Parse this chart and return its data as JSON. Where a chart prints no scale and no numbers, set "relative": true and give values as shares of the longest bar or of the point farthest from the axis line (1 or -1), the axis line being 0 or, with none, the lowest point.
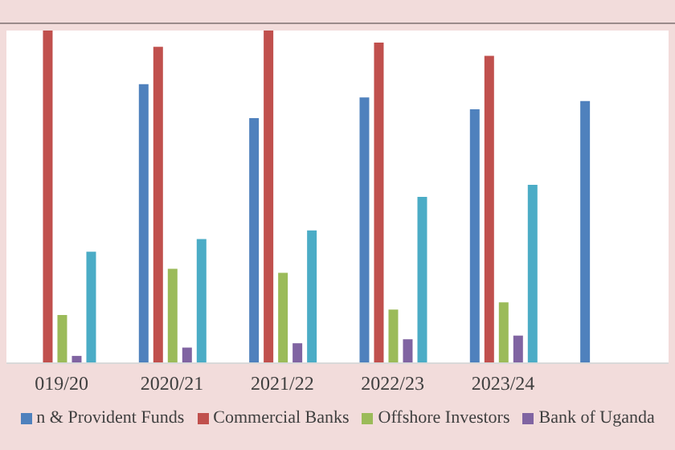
{
  "chart_data": {
    "type": "bar",
    "relative": true,
    "categories": [
      "019/20",
      "2020/21",
      "2021/22",
      "2022/23",
      "2023/24",
      null
    ],
    "series": [
      {
        "name": "n & Provident Funds",
        "color": "#4f81bd",
        "values": [
          null,
          0.839,
          0.737,
          0.799,
          0.763,
          0.788
        ]
      },
      {
        "name": "Commercial Banks",
        "color": "#c0504d",
        "values": [
          1.0,
          0.951,
          1.0,
          0.964,
          0.924,
          null
        ]
      },
      {
        "name": "Offshore Investors",
        "color": "#9bbb59",
        "values": [
          0.145,
          0.284,
          0.272,
          0.161,
          0.183,
          null
        ]
      },
      {
        "name": "Bank of Uganda",
        "color": "#8064a2",
        "values": [
          0.022,
          0.047,
          0.06,
          0.072,
          0.083,
          null
        ]
      },
      {
        "color": "#4bacc6",
        "values": [
          0.335,
          0.373,
          0.399,
          0.5,
          0.536,
          null
        ]
      }
    ],
    "legend": "bottom"
  }
}
